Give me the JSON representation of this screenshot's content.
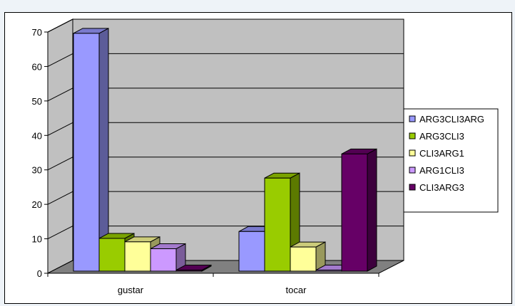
{
  "chart_data": {
    "type": "bar",
    "three_d": true,
    "categories": [
      "gustar",
      "tocar"
    ],
    "series": [
      {
        "name": "ARG3CLI3ARG",
        "values": [
          69,
          11.5
        ],
        "color": "#9999ff",
        "side": "#5c5c99",
        "top": "#7a7acc"
      },
      {
        "name": "ARG3CLI3",
        "values": [
          9.5,
          27
        ],
        "color": "#99cc00",
        "side": "#5c7a00",
        "top": "#7aa300"
      },
      {
        "name": "CLI3ARG1",
        "values": [
          8.5,
          7
        ],
        "color": "#ffff99",
        "side": "#99995c",
        "top": "#cccc7a"
      },
      {
        "name": "ARG1CLI3",
        "values": [
          6.5,
          0.3
        ],
        "color": "#cc99ff",
        "side": "#7a5c99",
        "top": "#a37acc"
      },
      {
        "name": "CLI3ARG3",
        "values": [
          0.3,
          34
        ],
        "color": "#660066",
        "side": "#3d003d",
        "top": "#520052"
      }
    ],
    "ylim": [
      0,
      70
    ],
    "yticks": [
      "0",
      "10",
      "20",
      "30",
      "40",
      "50",
      "60",
      "70"
    ],
    "grid": true,
    "legend_position": "right",
    "wall_color": "#c0c0c0",
    "floor_color": "#808080"
  }
}
